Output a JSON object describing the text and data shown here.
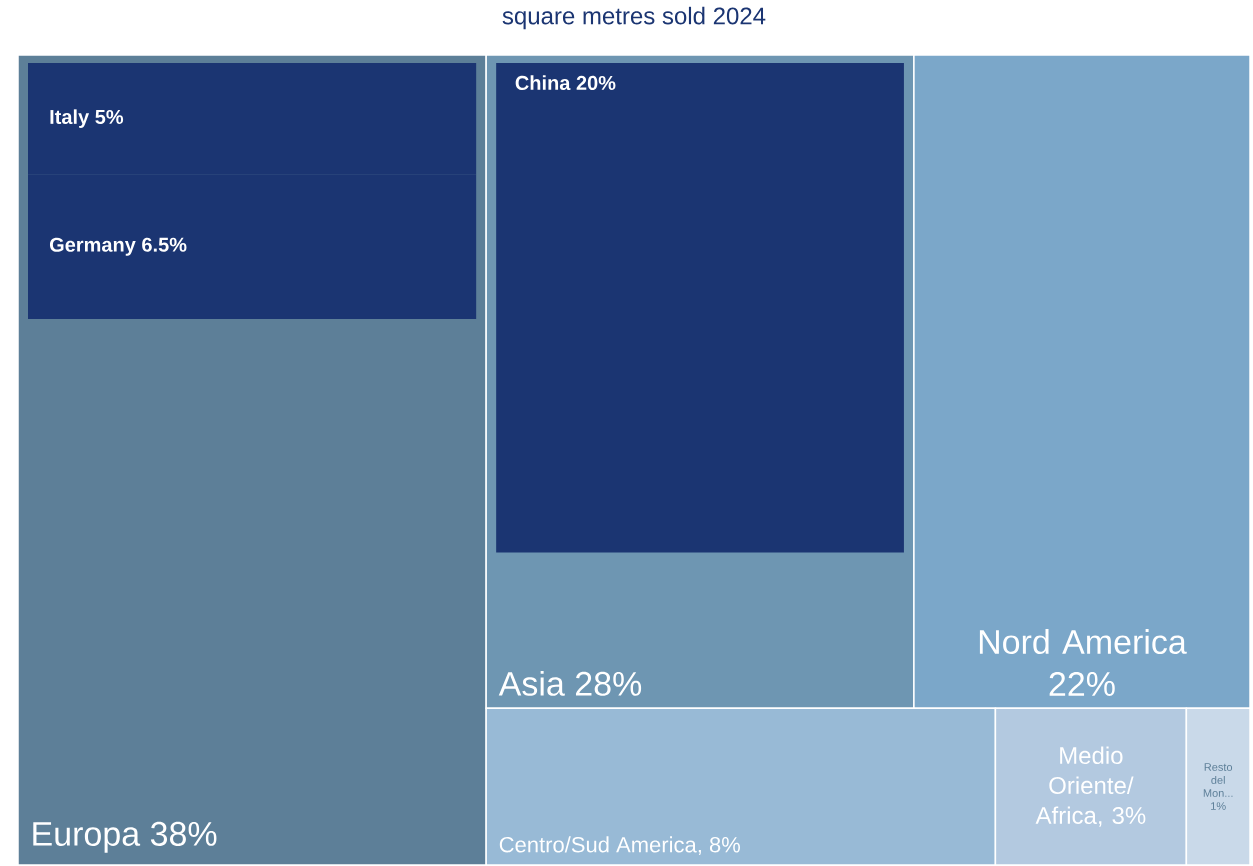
{
  "chart_data": {
    "type": "other",
    "title": "square metres sold 2024",
    "categories": [
      "Europa",
      "Asia",
      "Nord America",
      "Centro/Sud America",
      "Medio Oriente/ Africa",
      "Resto del Mon...",
      "Italy",
      "Germany",
      "China"
    ],
    "values": [
      38,
      28,
      22,
      8,
      3,
      1,
      5,
      6.5,
      20
    ],
    "value_labels": [
      "38%",
      "28%",
      "22%",
      ", 8%",
      ", 3%",
      "1%",
      "5%",
      "6.5%",
      "20%"
    ],
    "colors": [
      "#5d7f98",
      "#6e96b2",
      "#7ba7c9",
      "#98bad6",
      "#b3c9e0",
      "#c9d9e9",
      "#1b3572",
      "#1b3572",
      "#1b3572"
    ]
  }
}
